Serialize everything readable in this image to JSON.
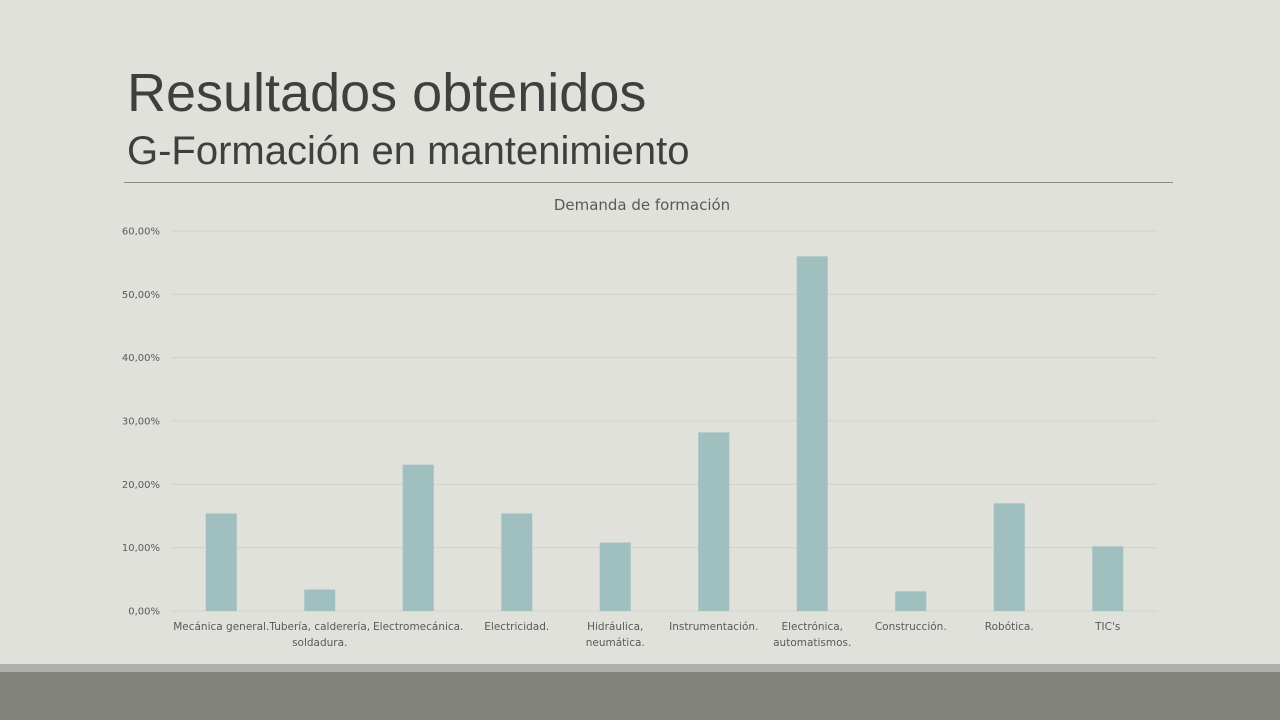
{
  "slide": {
    "title": "Resultados obtenidos",
    "subtitle": "G-Formación en mantenimiento"
  },
  "chart_data": {
    "type": "bar",
    "title": "Demanda de formación",
    "categories": [
      [
        "Mecánica general."
      ],
      [
        "Tubería, calderería,",
        "soldadura."
      ],
      [
        "Electromecánica."
      ],
      [
        "Electricidad."
      ],
      [
        "Hidráulica,",
        "neumática."
      ],
      [
        "Instrumentación."
      ],
      [
        "Electrónica,",
        "automatismos."
      ],
      [
        "Construcción."
      ],
      [
        "Robótica."
      ],
      [
        "TIC's"
      ]
    ],
    "values": [
      15.4,
      3.4,
      23.1,
      15.4,
      10.8,
      28.2,
      56.0,
      3.1,
      17.0,
      10.2
    ],
    "ylim": [
      0,
      60
    ],
    "yticks": [
      "0,00%",
      "10,00%",
      "20,00%",
      "30,00%",
      "40,00%",
      "50,00%",
      "60,00%"
    ],
    "grid": true,
    "bar_color": "#a0bfbf",
    "grid_color": "#d2d2cd"
  }
}
